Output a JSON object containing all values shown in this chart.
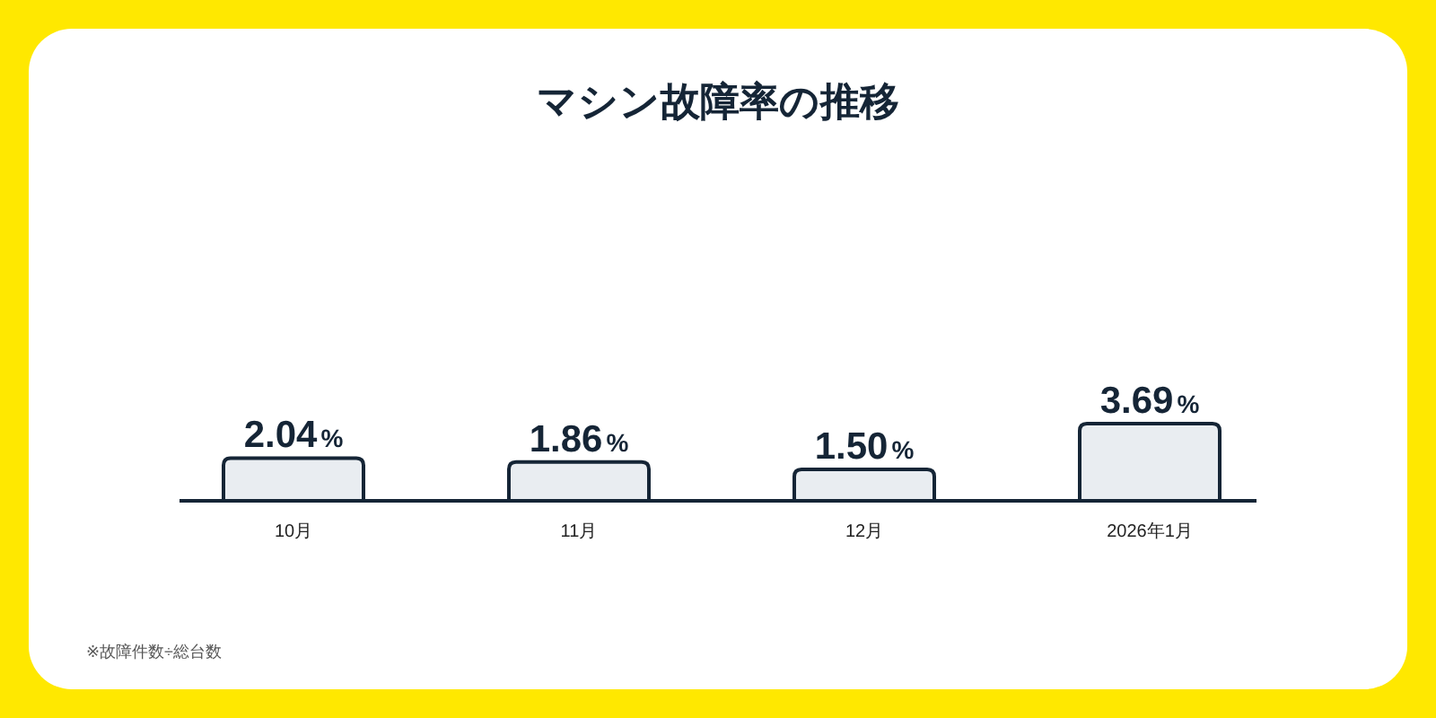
{
  "chart_data": {
    "type": "bar",
    "title": "マシン故障率の推移",
    "categories": [
      "10月",
      "11月",
      "12月",
      "2026年1月"
    ],
    "values": [
      2.04,
      1.86,
      1.5,
      3.69
    ],
    "value_labels": [
      "2.04%",
      "1.86%",
      "1.50%",
      "3.69%"
    ],
    "color": "#e9edf1",
    "annotations": [
      "※故障件数÷総台数"
    ]
  }
}
